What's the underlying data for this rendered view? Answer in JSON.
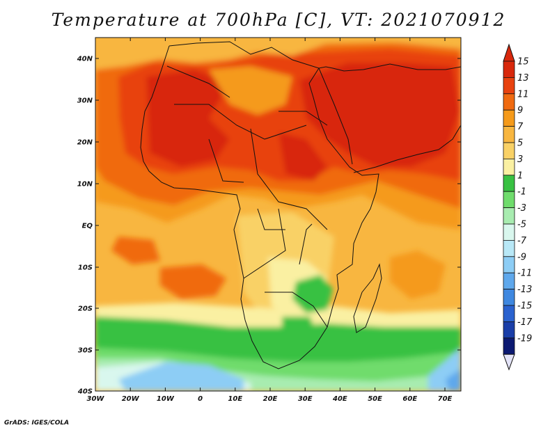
{
  "title": "Temperature at 700hPa [C], VT: 2021070912",
  "credit": "GrADS: IGES/COLA",
  "axes": {
    "y_ticks": [
      "40N",
      "30N",
      "20N",
      "10N",
      "EQ",
      "10S",
      "20S",
      "30S",
      "40S"
    ],
    "x_ticks": [
      "30W",
      "20W",
      "10W",
      "0",
      "10E",
      "20E",
      "30E",
      "40E",
      "50E",
      "60E",
      "70E"
    ]
  },
  "colorbar": {
    "labels": [
      "15",
      "13",
      "11",
      "9",
      "7",
      "5",
      "3",
      "1",
      "-1",
      "-3",
      "-5",
      "-7",
      "-9",
      "-11",
      "-13",
      "-15",
      "-17",
      "-19"
    ],
    "colors": [
      "#d8280c",
      "#e8420f",
      "#f06a10",
      "#f59a1a",
      "#f8b640",
      "#f9d166",
      "#faf0a2",
      "#38c142",
      "#6fdc6c",
      "#a8ecb0",
      "#d9f7ee",
      "#b8e8f7",
      "#8dcdf5",
      "#5fa8ec",
      "#3f88e0",
      "#2a62cf",
      "#1a3ea8",
      "#0c1a72"
    ]
  }
}
